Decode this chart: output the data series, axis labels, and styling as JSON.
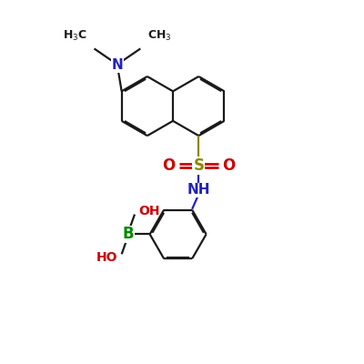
{
  "bg_color": "#ffffff",
  "bond_color": "#1a1a1a",
  "N_color": "#2222bb",
  "O_color": "#cc0000",
  "B_color": "#008800",
  "S_color": "#888800",
  "lw": 1.6,
  "dgap": 0.038,
  "figsize": [
    4.0,
    4.0
  ],
  "dpi": 100,
  "xlim": [
    0,
    10
  ],
  "ylim": [
    0,
    10
  ]
}
